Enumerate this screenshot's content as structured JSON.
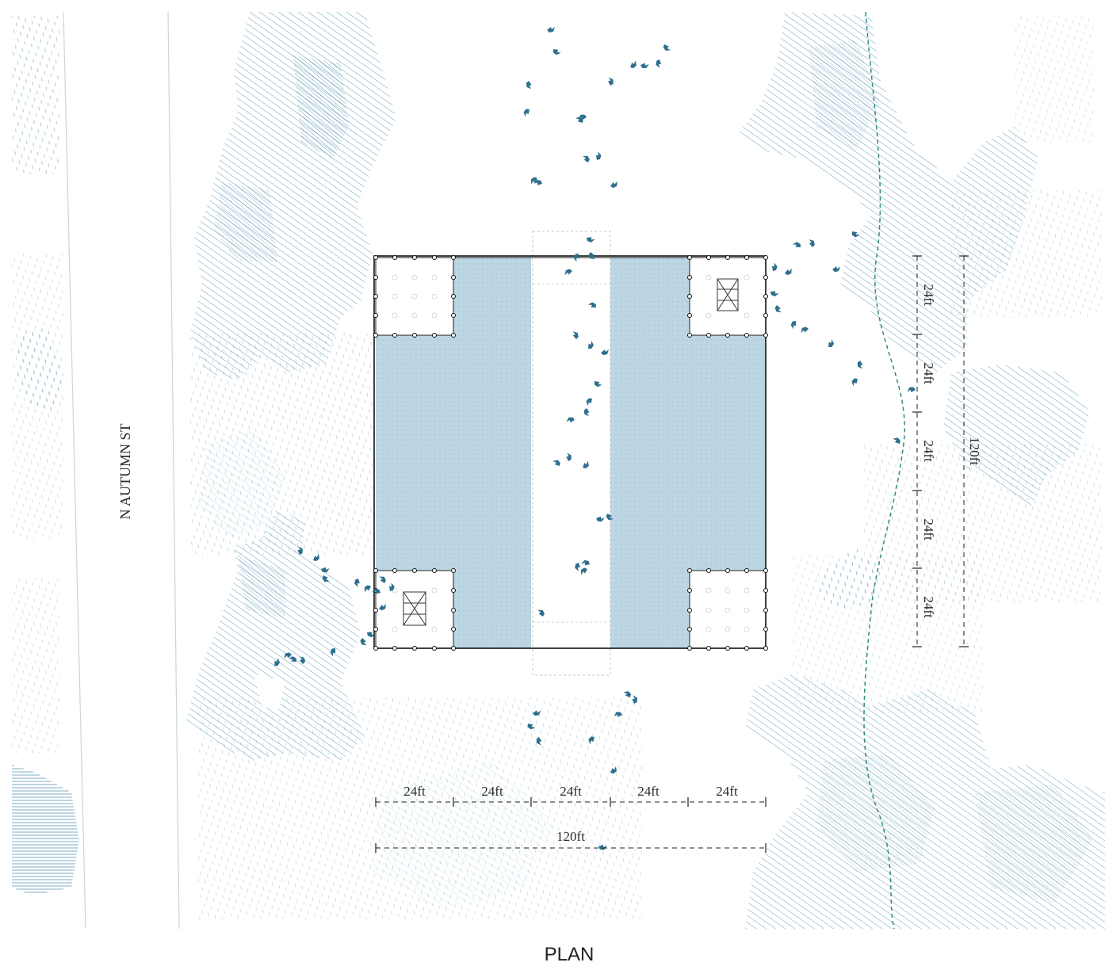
{
  "street_label": "N AUTUMN ST",
  "caption": "PLAN",
  "dimensions": {
    "horizontal_modules": [
      "24ft",
      "24ft",
      "24ft",
      "24ft",
      "24ft"
    ],
    "horizontal_total": "120ft",
    "vertical_modules": [
      "24ft",
      "24ft",
      "24ft",
      "24ft",
      "24ft"
    ],
    "vertical_total": "120ft"
  },
  "colors": {
    "vegetation": "#5f9ab5",
    "vegetation_light": "#a9c9d8",
    "floor_fill": "#bcd6e3",
    "bird": "#2e6f8e",
    "path_dashed": "#2f8a7c",
    "structure": "#111111",
    "street_line": "#c9d6dc"
  }
}
